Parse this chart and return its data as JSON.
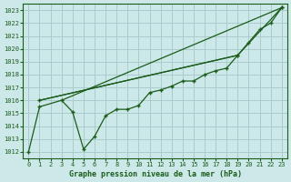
{
  "bg_color": "#cce8e8",
  "grid_color": "#aacccc",
  "line_color": "#1a5c1a",
  "title": "Graphe pression niveau de la mer (hPa)",
  "xlim": [
    -0.5,
    23.5
  ],
  "ylim": [
    1011.5,
    1023.5
  ],
  "yticks": [
    1012,
    1013,
    1014,
    1015,
    1016,
    1017,
    1018,
    1019,
    1020,
    1021,
    1022,
    1023
  ],
  "xticks": [
    0,
    1,
    2,
    3,
    4,
    5,
    6,
    7,
    8,
    9,
    10,
    11,
    12,
    13,
    14,
    15,
    16,
    17,
    18,
    19,
    20,
    21,
    22,
    23
  ],
  "series_main": {
    "x": [
      0,
      1,
      3,
      4,
      5,
      6,
      7,
      8,
      9,
      10,
      11,
      12,
      13,
      14,
      15,
      16,
      17,
      18,
      19,
      23
    ],
    "y": [
      1012.0,
      1015.5,
      1016.0,
      1015.1,
      1012.2,
      1013.2,
      1014.8,
      1015.3,
      1015.3,
      1015.6,
      1016.6,
      1016.8,
      1017.1,
      1017.5,
      1017.5,
      1018.0,
      1018.3,
      1018.5,
      1019.5,
      1023.2
    ]
  },
  "series_upper": {
    "x": [
      1,
      19,
      20,
      21,
      22,
      23
    ],
    "y": [
      1016.0,
      1019.5,
      1020.5,
      1021.5,
      1022.0,
      1023.2
    ]
  },
  "series_straight1": {
    "x": [
      3,
      23
    ],
    "y": [
      1016.0,
      1023.2
    ]
  },
  "series_straight2": {
    "x": [
      1,
      19
    ],
    "y": [
      1016.0,
      1019.5
    ]
  }
}
